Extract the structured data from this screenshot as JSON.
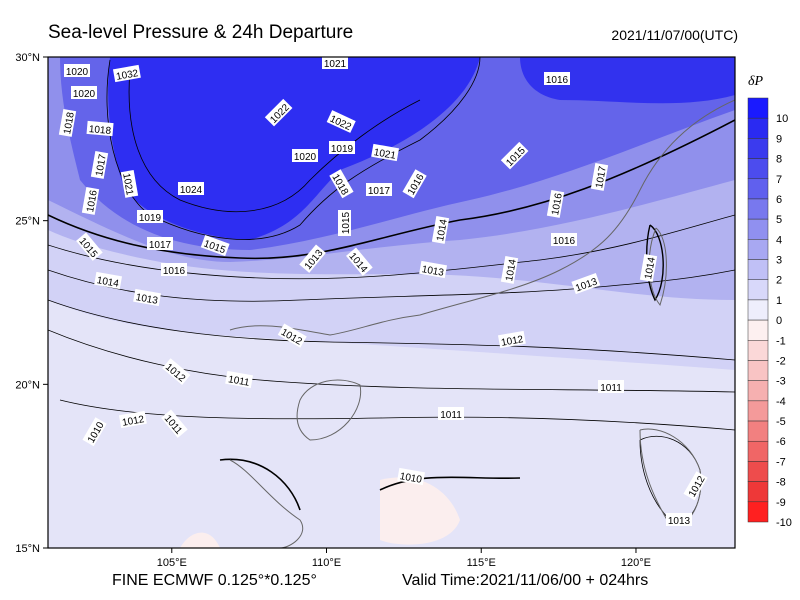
{
  "title": "Sea-level Pressure & 24h Departure",
  "datetime": "2021/11/07/00(UTC)",
  "footer": {
    "model": "FINE ECMWF 0.125°*0.125°",
    "valid_time": "Valid Time:2021/11/06/00 + 024hrs"
  },
  "axes": {
    "lat_labels": [
      "30°N",
      "25°N",
      "20°N",
      "15°N"
    ],
    "lon_labels": [
      "105°E",
      "110°E",
      "115°E",
      "120°E"
    ],
    "lat_range": [
      15,
      30
    ],
    "lon_range": [
      101,
      123.2
    ]
  },
  "legend": {
    "title": "δP",
    "labels": [
      "10",
      "9",
      "8",
      "7",
      "6",
      "5",
      "4",
      "3",
      "2",
      "1",
      "0",
      "-1",
      "-2",
      "-3",
      "-4",
      "-5",
      "-6",
      "-7",
      "-8",
      "-9",
      "-10"
    ],
    "colors": [
      "#1a1aff",
      "#2a2af2",
      "#3b3bee",
      "#4c4cee",
      "#6060ee",
      "#7878ee",
      "#9090f0",
      "#a8a8f2",
      "#c0c0f6",
      "#d8d8fa",
      "#eeeefc",
      "#fdf0f0",
      "#fbd8d8",
      "#f9c4c4",
      "#f6b0b0",
      "#f49a9a",
      "#f28080",
      "#f06666",
      "#ee4c4c",
      "#ee3838",
      "#ff2020"
    ]
  },
  "contour_labels": [
    "1020",
    "1032",
    "1021",
    "1020",
    "1018",
    "1018",
    "1022",
    "1022",
    "1016",
    "1020",
    "1019",
    "1021",
    "1017",
    "1015",
    "1017",
    "1021",
    "1024",
    "1018",
    "1017",
    "1016",
    "1016",
    "1016",
    "1019",
    "1015",
    "1014",
    "1017",
    "1015",
    "1015",
    "1016",
    "1013",
    "1014",
    "1013",
    "1014",
    "1014",
    "1016",
    "1014",
    "1013",
    "1013",
    "1012",
    "1012",
    "1012",
    "1011",
    "1011",
    "1012",
    "1011",
    "1011",
    "1010",
    "1010",
    "1012",
    "1013"
  ]
}
